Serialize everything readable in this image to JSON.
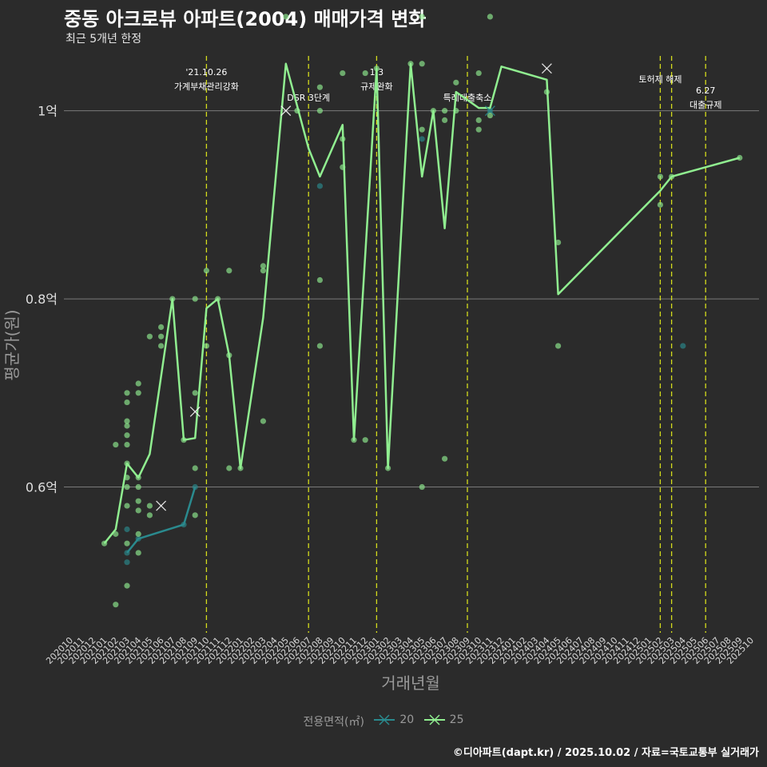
{
  "title": "중동 아크로뷰 아파트(2004) 매매가격 변화",
  "subtitle": "최근 5개년 한정",
  "caption": "©디아파트(dapt.kr) / 2025.10.02 / 자료=국토교통부 실거래가",
  "colors": {
    "background": "#2b2b2b",
    "grid": "#7a7a7a",
    "series_20": "#2a8a8e",
    "series_25": "#90ee90",
    "event_line": "#d4dc1c",
    "axis_text": "#9a9a9a"
  },
  "chart_data": {
    "type": "line",
    "xlabel": "거래년월",
    "ylabel": "평균가(원)",
    "y_unit": "억",
    "ylim": [
      0.445,
      1.06
    ],
    "yticks": [
      {
        "value": 0.6,
        "label": "0.6억"
      },
      {
        "value": 0.8,
        "label": "0.8억"
      },
      {
        "value": 1.0,
        "label": "1억"
      }
    ],
    "x_categories": [
      "202010",
      "202011",
      "202012",
      "202101",
      "202102",
      "202103",
      "202104",
      "202105",
      "202106",
      "202107",
      "202108",
      "202109",
      "202110",
      "202111",
      "202112",
      "202201",
      "202202",
      "202203",
      "202204",
      "202205",
      "202206",
      "202207",
      "202208",
      "202209",
      "202210",
      "202211",
      "202212",
      "202301",
      "202302",
      "202303",
      "202304",
      "202305",
      "202306",
      "202307",
      "202308",
      "202309",
      "202310",
      "202311",
      "202312",
      "202401",
      "202402",
      "202403",
      "202404",
      "202405",
      "202406",
      "202407",
      "202408",
      "202409",
      "202410",
      "202411",
      "202412",
      "202501",
      "202502",
      "202503",
      "202504",
      "202505",
      "202506",
      "202507",
      "202508",
      "202509",
      "202510"
    ],
    "legend_title": "전용면적(㎡)",
    "series": [
      {
        "name": "20",
        "line": [
          {
            "x": "202103",
            "y": 0.53
          },
          {
            "x": "202104",
            "y": 0.545
          },
          {
            "x": "202108",
            "y": 0.56
          },
          {
            "x": "202109",
            "y": 0.6
          }
        ],
        "points": [
          {
            "x": "202103",
            "y": 0.52
          },
          {
            "x": "202103",
            "y": 0.53
          },
          {
            "x": "202103",
            "y": 0.555
          },
          {
            "x": "202104",
            "y": 0.545
          },
          {
            "x": "202108",
            "y": 0.56
          },
          {
            "x": "202109",
            "y": 0.6
          },
          {
            "x": "202208",
            "y": 0.92
          },
          {
            "x": "202305",
            "y": 0.97
          },
          {
            "x": "202311",
            "y": 1.0
          },
          {
            "x": "202504",
            "y": 0.75
          }
        ],
        "marks": [
          {
            "x": "202311",
            "y": 1.0
          }
        ]
      },
      {
        "name": "25",
        "line": [
          {
            "x": "202101",
            "y": 0.54
          },
          {
            "x": "202102",
            "y": 0.555
          },
          {
            "x": "202103",
            "y": 0.625
          },
          {
            "x": "202104",
            "y": 0.61
          },
          {
            "x": "202105",
            "y": 0.635
          },
          {
            "x": "202107",
            "y": 0.8
          },
          {
            "x": "202108",
            "y": 0.65
          },
          {
            "x": "202109",
            "y": 0.652
          },
          {
            "x": "202110",
            "y": 0.79
          },
          {
            "x": "202111",
            "y": 0.8
          },
          {
            "x": "202112",
            "y": 0.74
          },
          {
            "x": "202201",
            "y": 0.62
          },
          {
            "x": "202203",
            "y": 0.78
          },
          {
            "x": "202205",
            "y": 1.05
          },
          {
            "x": "202207",
            "y": 0.96
          },
          {
            "x": "202208",
            "y": 0.93
          },
          {
            "x": "202210",
            "y": 0.985
          },
          {
            "x": "202211",
            "y": 0.65
          },
          {
            "x": "202301",
            "y": 1.045
          },
          {
            "x": "202302",
            "y": 0.62
          },
          {
            "x": "202304",
            "y": 1.05
          },
          {
            "x": "202305",
            "y": 0.93
          },
          {
            "x": "202306",
            "y": 1.0
          },
          {
            "x": "202307",
            "y": 0.875
          },
          {
            "x": "202308",
            "y": 1.02
          },
          {
            "x": "202310",
            "y": 1.003
          },
          {
            "x": "202311",
            "y": 1.003
          },
          {
            "x": "202312",
            "y": 1.047
          },
          {
            "x": "202404",
            "y": 1.033
          },
          {
            "x": "202405",
            "y": 0.805
          },
          {
            "x": "202502",
            "y": 0.915
          },
          {
            "x": "202503",
            "y": 0.93
          },
          {
            "x": "202509",
            "y": 0.95
          }
        ],
        "points": [
          {
            "x": "202101",
            "y": 0.54
          },
          {
            "x": "202102",
            "y": 0.475
          },
          {
            "x": "202102",
            "y": 0.55
          },
          {
            "x": "202102",
            "y": 0.645
          },
          {
            "x": "202103",
            "y": 0.495
          },
          {
            "x": "202103",
            "y": 0.54
          },
          {
            "x": "202103",
            "y": 0.58
          },
          {
            "x": "202103",
            "y": 0.6
          },
          {
            "x": "202103",
            "y": 0.61
          },
          {
            "x": "202103",
            "y": 0.625
          },
          {
            "x": "202103",
            "y": 0.645
          },
          {
            "x": "202103",
            "y": 0.655
          },
          {
            "x": "202103",
            "y": 0.665
          },
          {
            "x": "202103",
            "y": 0.67
          },
          {
            "x": "202103",
            "y": 0.69
          },
          {
            "x": "202103",
            "y": 0.7
          },
          {
            "x": "202104",
            "y": 0.53
          },
          {
            "x": "202104",
            "y": 0.55
          },
          {
            "x": "202104",
            "y": 0.575
          },
          {
            "x": "202104",
            "y": 0.585
          },
          {
            "x": "202104",
            "y": 0.6
          },
          {
            "x": "202104",
            "y": 0.61
          },
          {
            "x": "202104",
            "y": 0.7
          },
          {
            "x": "202104",
            "y": 0.71
          },
          {
            "x": "202105",
            "y": 0.57
          },
          {
            "x": "202105",
            "y": 0.58
          },
          {
            "x": "202105",
            "y": 0.76
          },
          {
            "x": "202106",
            "y": 0.75
          },
          {
            "x": "202106",
            "y": 0.76
          },
          {
            "x": "202106",
            "y": 0.77
          },
          {
            "x": "202107",
            "y": 0.8
          },
          {
            "x": "202108",
            "y": 0.65
          },
          {
            "x": "202109",
            "y": 0.57
          },
          {
            "x": "202109",
            "y": 0.62
          },
          {
            "x": "202109",
            "y": 0.7
          },
          {
            "x": "202109",
            "y": 0.8
          },
          {
            "x": "202110",
            "y": 0.75
          },
          {
            "x": "202110",
            "y": 0.83
          },
          {
            "x": "202111",
            "y": 0.8
          },
          {
            "x": "202112",
            "y": 0.62
          },
          {
            "x": "202112",
            "y": 0.74
          },
          {
            "x": "202112",
            "y": 0.83
          },
          {
            "x": "202201",
            "y": 0.62
          },
          {
            "x": "202203",
            "y": 0.67
          },
          {
            "x": "202203",
            "y": 0.83
          },
          {
            "x": "202203",
            "y": 0.835
          },
          {
            "x": "202205",
            "y": 1.1
          },
          {
            "x": "202206",
            "y": 1.0
          },
          {
            "x": "202208",
            "y": 0.75
          },
          {
            "x": "202208",
            "y": 0.82
          },
          {
            "x": "202208",
            "y": 1.0
          },
          {
            "x": "202208",
            "y": 1.025
          },
          {
            "x": "202210",
            "y": 0.94
          },
          {
            "x": "202210",
            "y": 0.97
          },
          {
            "x": "202210",
            "y": 1.04
          },
          {
            "x": "202211",
            "y": 0.65
          },
          {
            "x": "202212",
            "y": 0.65
          },
          {
            "x": "202212",
            "y": 1.04
          },
          {
            "x": "202301",
            "y": 1.045
          },
          {
            "x": "202302",
            "y": 0.62
          },
          {
            "x": "202304",
            "y": 1.05
          },
          {
            "x": "202305",
            "y": 0.6
          },
          {
            "x": "202305",
            "y": 0.98
          },
          {
            "x": "202305",
            "y": 1.05
          },
          {
            "x": "202305",
            "y": 1.1
          },
          {
            "x": "202306",
            "y": 1.0
          },
          {
            "x": "202307",
            "y": 0.63
          },
          {
            "x": "202307",
            "y": 0.99
          },
          {
            "x": "202307",
            "y": 1.0
          },
          {
            "x": "202308",
            "y": 1.0
          },
          {
            "x": "202308",
            "y": 1.03
          },
          {
            "x": "202310",
            "y": 0.98
          },
          {
            "x": "202310",
            "y": 0.99
          },
          {
            "x": "202310",
            "y": 1.04
          },
          {
            "x": "202311",
            "y": 0.995
          },
          {
            "x": "202311",
            "y": 1.1
          },
          {
            "x": "202404",
            "y": 1.02
          },
          {
            "x": "202405",
            "y": 0.75
          },
          {
            "x": "202405",
            "y": 0.86
          },
          {
            "x": "202502",
            "y": 0.9
          },
          {
            "x": "202502",
            "y": 0.93
          },
          {
            "x": "202503",
            "y": 0.93
          },
          {
            "x": "202509",
            "y": 0.95
          }
        ],
        "marks": [
          {
            "x": "202106",
            "y": 0.58
          },
          {
            "x": "202109",
            "y": 0.68
          },
          {
            "x": "202205",
            "y": 1.0
          },
          {
            "x": "202404",
            "y": 1.045
          }
        ]
      }
    ],
    "events": [
      {
        "x": "202110",
        "label": "'21.10.26\n가계부채관리강화",
        "row": "top"
      },
      {
        "x": "202207",
        "label": "DSR 3단계",
        "row": "low"
      },
      {
        "x": "202301",
        "label": "1.3\n규제완화",
        "row": "top"
      },
      {
        "x": "202309",
        "label": "특례대출축소",
        "row": "low"
      },
      {
        "x": "202502",
        "label": "토허제 해제",
        "row": "mid"
      },
      {
        "x": "202503",
        "label": "",
        "row": "none"
      },
      {
        "x": "202506",
        "label": "6.27\n대출규제",
        "row": "right"
      }
    ]
  }
}
